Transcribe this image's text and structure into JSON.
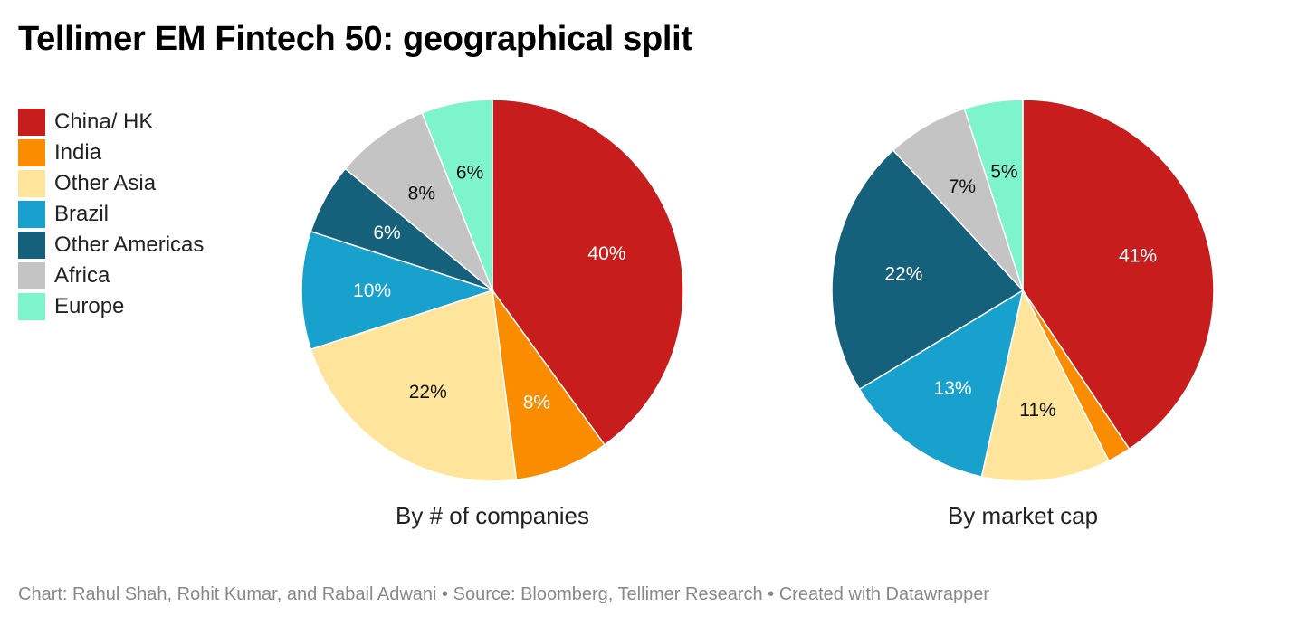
{
  "title": "Tellimer EM Fintech 50: geographical split",
  "footer": "Chart: Rahul Shah, Rohit Kumar, and Rabail Adwani • Source: Bloomberg, Tellimer Research • Created with Datawrapper",
  "legend": [
    {
      "label": "China/ HK",
      "color": "#c71e1d"
    },
    {
      "label": "India",
      "color": "#fa8c00"
    },
    {
      "label": "Other Asia",
      "color": "#ffe59c"
    },
    {
      "label": "Brazil",
      "color": "#18a1cd"
    },
    {
      "label": "Other Americas",
      "color": "#15607a"
    },
    {
      "label": "Africa",
      "color": "#c4c4c4"
    },
    {
      "label": "Europe",
      "color": "#7ef4cc"
    }
  ],
  "chart_data": [
    {
      "type": "pie",
      "subtitle": "By # of companies",
      "categories": [
        "China/ HK",
        "India",
        "Other Asia",
        "Brazil",
        "Other Americas",
        "Africa",
        "Europe"
      ],
      "values": [
        40,
        8,
        22,
        10,
        6,
        8,
        6
      ],
      "labels": [
        "40%",
        "8%",
        "22%",
        "10%",
        "6%",
        "8%",
        "6%"
      ]
    },
    {
      "type": "pie",
      "subtitle": "By market cap",
      "categories": [
        "China/ HK",
        "India",
        "Other Asia",
        "Brazil",
        "Other Americas",
        "Africa",
        "Europe"
      ],
      "values": [
        41,
        2,
        11,
        13,
        22,
        7,
        5
      ],
      "labels": [
        "41%",
        "",
        "11%",
        "13%",
        "22%",
        "7%",
        "5%"
      ]
    }
  ]
}
